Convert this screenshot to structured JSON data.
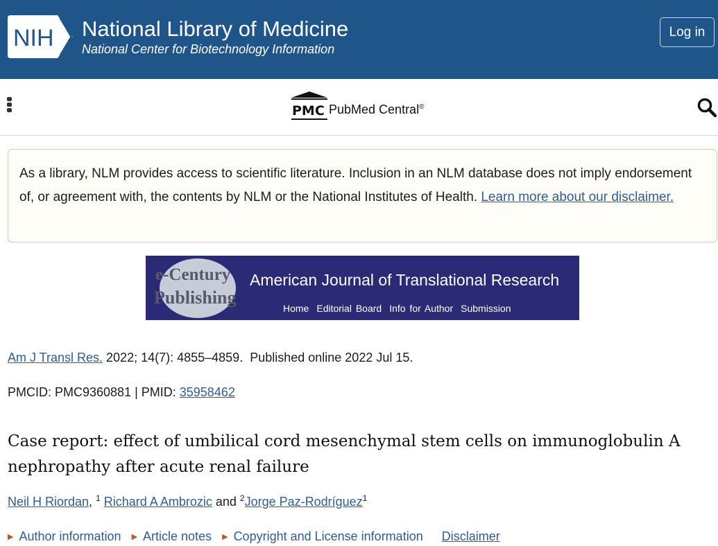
{
  "header": {
    "logo": "NIH",
    "title": "National Library of Medicine",
    "subtitle": "National Center for Biotechnology Information",
    "login_label": "Log in",
    "color": "#20558a"
  },
  "navbar": {
    "menu_icon": "kebab-menu-icon",
    "pmc_logo": "PMC",
    "pmc_name": "PubMed Central",
    "pmc_reg": "®",
    "search_icon": "search-icon"
  },
  "disclaimer": {
    "text": "As a library, NLM provides access to scientific literature. Inclusion in an NLM database does not imply endorsement of, or agreement with, the contents by NLM or the National Institutes of Health. ",
    "link": "Learn more about our disclaimer."
  },
  "banner": {
    "publisher_line1": "e-Century",
    "publisher_line2": "Publishing",
    "journal": "American Journal of Translational Research",
    "nav": [
      "Home",
      "Editorial Board",
      "Info for Author",
      "Submission"
    ]
  },
  "citation": {
    "journal_link": "Am J Transl Res.",
    "details": " 2022; 14(7): 4855–4859.  Published online 2022 Jul 15."
  },
  "ids": {
    "pmcid": "PMCID: PMC9360881 | PMID: ",
    "pmid": "35958462"
  },
  "article": {
    "title": "Case report: effect of umbilical cord mesenchymal stem cells on immunoglobulin A nephropathy after acute renal failure"
  },
  "authors": [
    {
      "name": "Neil H Riordan",
      "sup": "1",
      "sep": ", "
    },
    {
      "name": "Richard A Ambrozic",
      "sup": "2",
      "sep": " and "
    },
    {
      "name": "Jorge Paz-Rodríguez",
      "sup": "1",
      "sep": ""
    }
  ],
  "article_links": [
    "Author information",
    "Article notes",
    "Copyright and License information"
  ],
  "disclaimer_link": "Disclaimer"
}
